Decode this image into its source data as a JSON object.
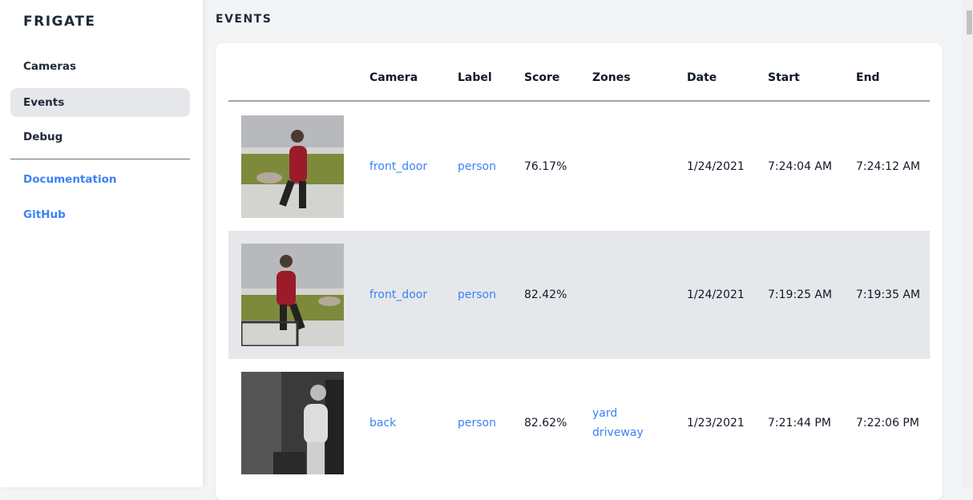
{
  "sidebar": {
    "brand": "FRIGATE",
    "items": [
      {
        "label": "Cameras"
      },
      {
        "label": "Events"
      },
      {
        "label": "Debug"
      }
    ],
    "links": [
      {
        "label": "Documentation"
      },
      {
        "label": "GitHub"
      }
    ]
  },
  "page_title": "EVENTS",
  "table": {
    "headers": [
      "Camera",
      "Label",
      "Score",
      "Zones",
      "Date",
      "Start",
      "End"
    ],
    "rows": [
      {
        "camera": "front_door",
        "label": "person",
        "score": "76.17%",
        "zones": [
          "",
          ""
        ],
        "date": "1/24/2021",
        "start": "7:24:04 AM",
        "end": "7:24:12 AM"
      },
      {
        "camera": "front_door",
        "label": "person",
        "score": "82.42%",
        "zones": [
          "",
          ""
        ],
        "date": "1/24/2021",
        "start": "7:19:25 AM",
        "end": "7:19:35 AM"
      },
      {
        "camera": "back",
        "label": "person",
        "score": "82.62%",
        "zones": [
          "yard",
          "driveway"
        ],
        "date": "1/23/2021",
        "start": "7:21:44 PM",
        "end": "7:22:06 PM"
      }
    ]
  },
  "colors": {
    "accent": "#3b82f6",
    "active_bg": "#e5e7eb"
  }
}
